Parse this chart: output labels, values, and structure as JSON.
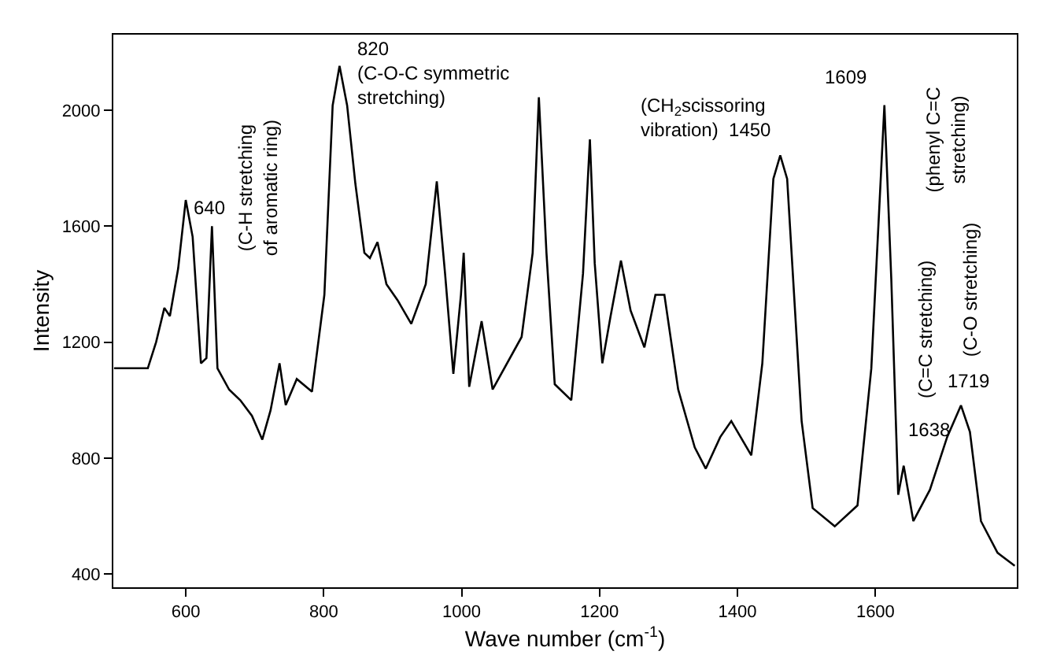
{
  "chart_data": {
    "type": "line",
    "xlabel": "Wave number (cm$^{-1}$)",
    "ylabel": "Intensity",
    "xlim": [
      495,
      1805
    ],
    "ylim": [
      355,
      2260
    ],
    "xticks": [
      600,
      800,
      1000,
      1200,
      1400,
      1600
    ],
    "yticks": [
      400,
      800,
      1200,
      1600,
      2000
    ],
    "marker": "none",
    "line_style": "solid",
    "x": [
      496,
      545,
      557,
      569,
      577,
      589,
      600,
      610,
      622,
      630,
      638,
      646,
      663,
      679,
      696,
      711,
      723,
      736,
      745,
      761,
      783,
      801,
      813,
      823,
      834,
      846,
      859,
      867,
      878,
      891,
      907,
      927,
      948,
      964,
      976,
      988,
      999,
      1003,
      1011,
      1029,
      1045,
      1087,
      1103,
      1112,
      1123,
      1135,
      1159,
      1176,
      1186,
      1193,
      1204,
      1216,
      1231,
      1245,
      1265,
      1281,
      1294,
      1314,
      1338,
      1354,
      1375,
      1391,
      1420,
      1436,
      1452,
      1462,
      1472,
      1493,
      1509,
      1541,
      1574,
      1594,
      1613,
      1623,
      1633,
      1641,
      1655,
      1679,
      1704,
      1724,
      1737,
      1753,
      1777,
      1802
    ],
    "series": [
      {
        "color": "#000000",
        "values": [
          1110,
          1110,
          1200,
          1318,
          1290,
          1454,
          1690,
          1563,
          1127,
          1145,
          1600,
          1110,
          1036,
          1000,
          946,
          864,
          965,
          1127,
          983,
          1073,
          1029,
          1363,
          2016,
          2152,
          2016,
          1745,
          1508,
          1490,
          1545,
          1400,
          1345,
          1263,
          1400,
          1754,
          1436,
          1091,
          1363,
          1508,
          1046,
          1272,
          1037,
          1218,
          1508,
          2044,
          1508,
          1055,
          1000,
          1436,
          1899,
          1472,
          1127,
          1290,
          1481,
          1309,
          1182,
          1363,
          1363,
          1037,
          837,
          764,
          873,
          928,
          810,
          1127,
          1763,
          1844,
          1763,
          928,
          628,
          565,
          637,
          1109,
          2017,
          1418,
          674,
          774,
          583,
          691,
          873,
          982,
          891,
          583,
          474,
          429
        ]
      }
    ],
    "annotations": [
      "640",
      "(C-H stretching\nof aromatic ring)",
      "820\n(C-O-C symmetric\nstretching)",
      "(CH$_{2}$scissoring\nvibration)  1450",
      "1609",
      "(phenyl C=C\nstretching)",
      "(C=C stretching)",
      "(C-O stretching)",
      "1719",
      "1638"
    ]
  }
}
